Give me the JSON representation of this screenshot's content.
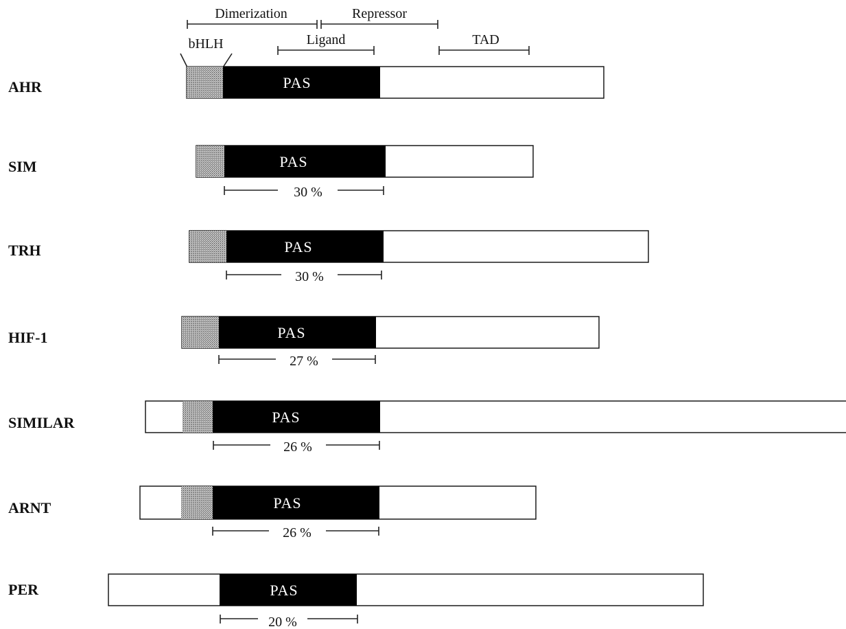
{
  "colors": {
    "pas": "#000000",
    "bhlh_hatch": "#8c8c8c",
    "bar_fill": "#ffffff",
    "outline": "#1a1a1a"
  },
  "header": {
    "dimerization": "Dimerization",
    "repressor": "Repressor",
    "ligand": "Ligand",
    "tad": "TAD",
    "bhlh": "bHLH"
  },
  "pas_text": "PAS",
  "proteins": [
    {
      "name": "AHR",
      "identity": null
    },
    {
      "name": "SIM",
      "identity": "30 %"
    },
    {
      "name": "TRH",
      "identity": "30 %"
    },
    {
      "name": "HIF-1",
      "identity": "27 %"
    },
    {
      "name": "SIMILAR",
      "identity": "26 %"
    },
    {
      "name": "ARNT",
      "identity": "26 %"
    },
    {
      "name": "PER",
      "identity": "20 %"
    }
  ]
}
